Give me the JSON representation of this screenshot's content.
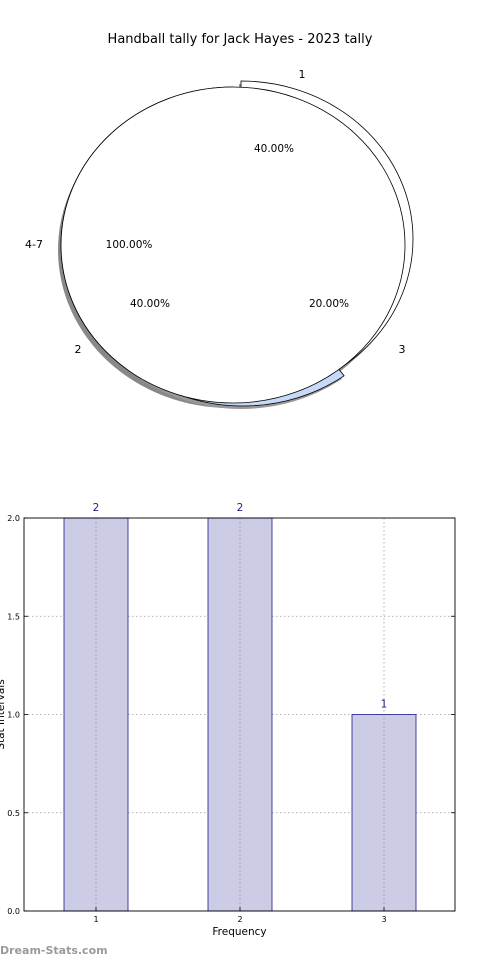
{
  "chart_data": [
    {
      "type": "pie",
      "title": "Handball tally for Jack Hayes - 2023 tally",
      "slices": [
        {
          "label": "1",
          "percent_label": "40.00%",
          "value": 40.0,
          "color": "#ffffff"
        },
        {
          "label": "3",
          "percent_label": "20.00%",
          "value": 20.0,
          "color": "#c6d9f7"
        },
        {
          "label": "2",
          "percent_label": "40.00%",
          "value": 40.0,
          "color": "#ffffff"
        }
      ],
      "overlay": {
        "label": "4-7",
        "percent_label": "100.00%",
        "value": 100.0,
        "color": "#ffffff"
      }
    },
    {
      "type": "bar",
      "categories": [
        "1",
        "2",
        "3"
      ],
      "values": [
        2,
        2,
        1
      ],
      "value_labels": [
        "2",
        "2",
        "1"
      ],
      "xlabel": "Frequency",
      "ylabel": "Stat Intervals",
      "ylim": [
        0,
        2.0
      ],
      "yticks": [
        "0.0",
        "0.5",
        "1.0",
        "1.5",
        "2.0"
      ],
      "grid": true,
      "bar_color": "#cccce6",
      "edge_color": "#1a1a8c"
    }
  ],
  "watermark": "Dream-Stats.com"
}
